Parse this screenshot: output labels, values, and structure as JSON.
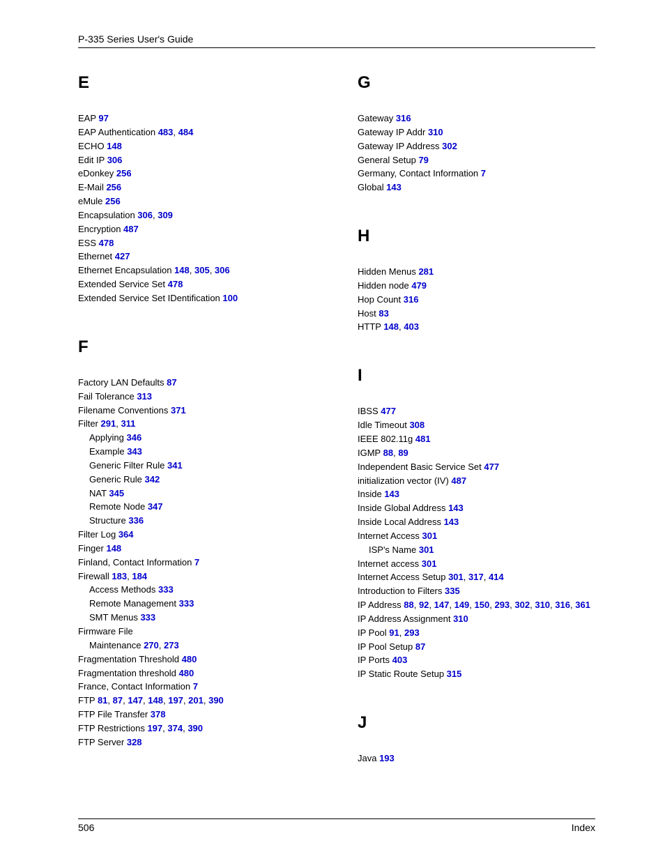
{
  "header": {
    "title": "P-335 Series User's Guide"
  },
  "footer": {
    "pageNumber": "506",
    "label": "Index"
  },
  "style": {
    "link_color": "#0000cc"
  },
  "columns": {
    "left": [
      {
        "letter": "E",
        "spacedTop": false,
        "entries": [
          {
            "text": "EAP ",
            "pages": [
              "97"
            ]
          },
          {
            "text": "EAP Authentication ",
            "pages": [
              "483",
              "484"
            ]
          },
          {
            "text": "ECHO ",
            "pages": [
              "148"
            ]
          },
          {
            "text": "Edit IP ",
            "pages": [
              "306"
            ]
          },
          {
            "text": "eDonkey ",
            "pages": [
              "256"
            ]
          },
          {
            "text": "E-Mail ",
            "pages": [
              "256"
            ]
          },
          {
            "text": "eMule ",
            "pages": [
              "256"
            ]
          },
          {
            "text": "Encapsulation ",
            "pages": [
              "306",
              "309"
            ]
          },
          {
            "text": "Encryption ",
            "pages": [
              "487"
            ]
          },
          {
            "text": "ESS ",
            "pages": [
              "478"
            ]
          },
          {
            "text": "Ethernet ",
            "pages": [
              "427"
            ]
          },
          {
            "text": "Ethernet Encapsulation ",
            "pages": [
              "148",
              "305",
              "306"
            ]
          },
          {
            "text": "Extended Service Set ",
            "pages": [
              "478"
            ]
          },
          {
            "text": "Extended Service Set IDentification ",
            "pages": [
              "100"
            ]
          }
        ]
      },
      {
        "letter": "F",
        "spacedTop": true,
        "entries": [
          {
            "text": "Factory LAN Defaults ",
            "pages": [
              "87"
            ]
          },
          {
            "text": "Fail Tolerance ",
            "pages": [
              "313"
            ]
          },
          {
            "text": "Filename Conventions ",
            "pages": [
              "371"
            ]
          },
          {
            "text": "Filter ",
            "pages": [
              "291",
              "311"
            ]
          },
          {
            "text": "Applying ",
            "pages": [
              "346"
            ],
            "sub": true
          },
          {
            "text": "Example ",
            "pages": [
              "343"
            ],
            "sub": true
          },
          {
            "text": "Generic Filter Rule ",
            "pages": [
              "341"
            ],
            "sub": true
          },
          {
            "text": "Generic Rule ",
            "pages": [
              "342"
            ],
            "sub": true
          },
          {
            "text": "NAT ",
            "pages": [
              "345"
            ],
            "sub": true
          },
          {
            "text": "Remote Node ",
            "pages": [
              "347"
            ],
            "sub": true
          },
          {
            "text": "Structure ",
            "pages": [
              "336"
            ],
            "sub": true
          },
          {
            "text": "Filter Log ",
            "pages": [
              "364"
            ]
          },
          {
            "text": "Finger ",
            "pages": [
              "148"
            ]
          },
          {
            "text": "Finland, Contact Information ",
            "pages": [
              "7"
            ]
          },
          {
            "text": "Firewall ",
            "pages": [
              "183",
              "184"
            ]
          },
          {
            "text": "Access Methods ",
            "pages": [
              "333"
            ],
            "sub": true
          },
          {
            "text": "Remote Management ",
            "pages": [
              "333"
            ],
            "sub": true
          },
          {
            "text": "SMT Menus ",
            "pages": [
              "333"
            ],
            "sub": true
          },
          {
            "text": "Firmware File",
            "pages": []
          },
          {
            "text": "Maintenance ",
            "pages": [
              "270",
              "273"
            ],
            "sub": true
          },
          {
            "text": "Fragmentation Threshold ",
            "pages": [
              "480"
            ]
          },
          {
            "text": "Fragmentation threshold ",
            "pages": [
              "480"
            ]
          },
          {
            "text": "France, Contact Information ",
            "pages": [
              "7"
            ]
          },
          {
            "text": "FTP ",
            "pages": [
              "81",
              "87",
              "147",
              "148",
              "197",
              "201",
              "390"
            ]
          },
          {
            "text": "FTP File Transfer ",
            "pages": [
              "378"
            ]
          },
          {
            "text": "FTP Restrictions ",
            "pages": [
              "197",
              "374",
              "390"
            ]
          },
          {
            "text": "FTP Server ",
            "pages": [
              "328"
            ]
          }
        ]
      }
    ],
    "right": [
      {
        "letter": "G",
        "spacedTop": false,
        "entries": [
          {
            "text": "Gateway ",
            "pages": [
              "316"
            ]
          },
          {
            "text": "Gateway IP Addr ",
            "pages": [
              "310"
            ]
          },
          {
            "text": "Gateway IP Address ",
            "pages": [
              "302"
            ]
          },
          {
            "text": "General Setup ",
            "pages": [
              "79"
            ]
          },
          {
            "text": "Germany, Contact Information ",
            "pages": [
              "7"
            ]
          },
          {
            "text": "Global ",
            "pages": [
              "143"
            ]
          }
        ]
      },
      {
        "letter": "H",
        "spacedTop": true,
        "entries": [
          {
            "text": "Hidden Menus ",
            "pages": [
              "281"
            ]
          },
          {
            "text": "Hidden node ",
            "pages": [
              "479"
            ]
          },
          {
            "text": "Hop Count ",
            "pages": [
              "316"
            ]
          },
          {
            "text": "Host ",
            "pages": [
              "83"
            ]
          },
          {
            "text": "HTTP ",
            "pages": [
              "148",
              "403"
            ]
          }
        ]
      },
      {
        "letter": "I",
        "spacedTop": true,
        "entries": [
          {
            "text": "IBSS ",
            "pages": [
              "477"
            ]
          },
          {
            "text": "Idle Timeout ",
            "pages": [
              "308"
            ]
          },
          {
            "text": "IEEE 802.11g ",
            "pages": [
              "481"
            ]
          },
          {
            "text": "IGMP ",
            "pages": [
              "88",
              "89"
            ]
          },
          {
            "text": "Independent Basic Service Set ",
            "pages": [
              "477"
            ]
          },
          {
            "text": "initialization vector (IV) ",
            "pages": [
              "487"
            ]
          },
          {
            "text": "Inside ",
            "pages": [
              "143"
            ]
          },
          {
            "text": "Inside Global Address ",
            "pages": [
              "143"
            ]
          },
          {
            "text": "Inside Local Address ",
            "pages": [
              "143"
            ]
          },
          {
            "text": "Internet Access ",
            "pages": [
              "301"
            ]
          },
          {
            "text": "ISP's Name ",
            "pages": [
              "301"
            ],
            "sub": true
          },
          {
            "text": "Internet access ",
            "pages": [
              "301"
            ]
          },
          {
            "text": "Internet Access Setup ",
            "pages": [
              "301",
              "317",
              "414"
            ]
          },
          {
            "text": "Introduction to Filters ",
            "pages": [
              "335"
            ]
          },
          {
            "text": "IP Address ",
            "pages": [
              "88",
              "92",
              "147",
              "149",
              "150",
              "293",
              "302",
              "310",
              "316",
              "361"
            ]
          },
          {
            "text": "IP Address Assignment ",
            "pages": [
              "310"
            ]
          },
          {
            "text": "IP Pool ",
            "pages": [
              "91",
              "293"
            ]
          },
          {
            "text": "IP Pool Setup ",
            "pages": [
              "87"
            ]
          },
          {
            "text": "IP Ports ",
            "pages": [
              "403"
            ]
          },
          {
            "text": "IP Static Route Setup ",
            "pages": [
              "315"
            ]
          }
        ]
      },
      {
        "letter": "J",
        "spacedTop": true,
        "entries": [
          {
            "text": "Java ",
            "pages": [
              "193"
            ]
          }
        ]
      }
    ]
  }
}
